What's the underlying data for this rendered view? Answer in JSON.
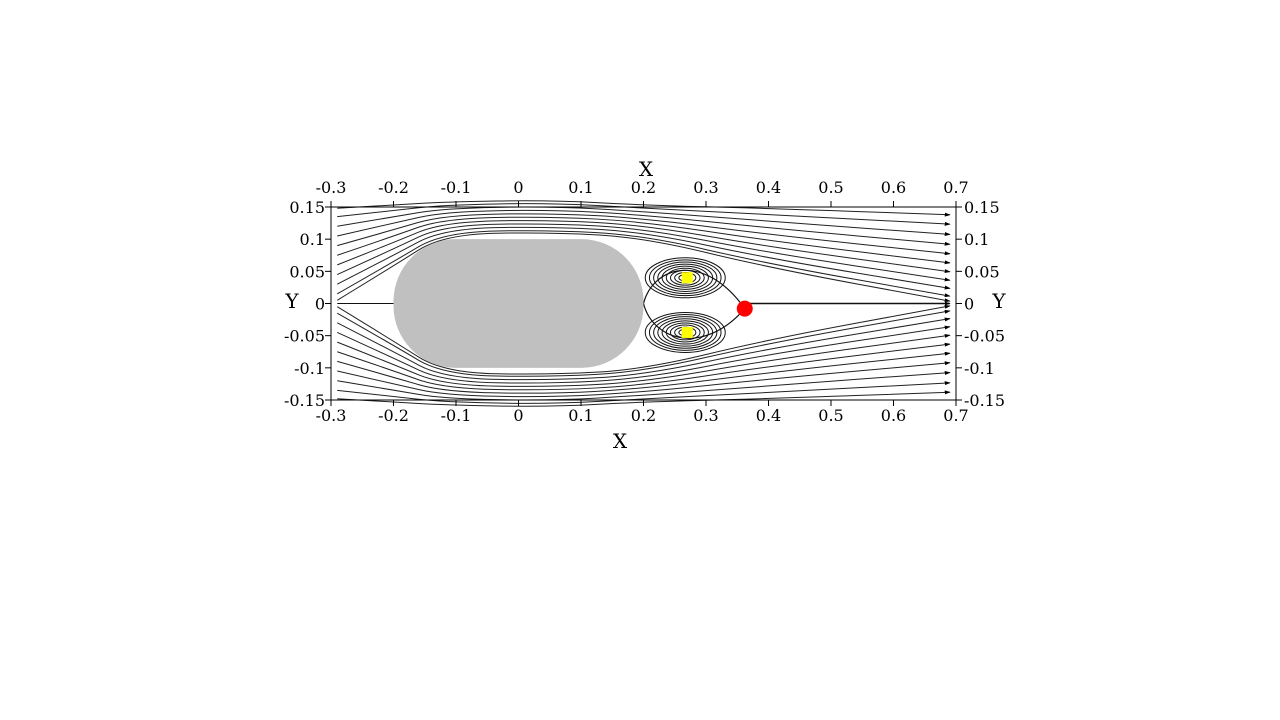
{
  "chart_data": {
    "type": "streamline",
    "xlabel": "X",
    "ylabel": "Y",
    "xlim": [
      -0.3,
      0.7
    ],
    "ylim": [
      -0.15,
      0.15
    ],
    "x_ticks": [
      "-0.3",
      "-0.2",
      "-0.1",
      "0",
      "0.1",
      "0.2",
      "0.3",
      "0.4",
      "0.5",
      "0.6",
      "0.7"
    ],
    "y_ticks": [
      "0.15",
      "0.1",
      "0.05",
      "0",
      "-0.05",
      "-0.1",
      "-0.15"
    ],
    "body": {
      "shape": "rounded-rectangle (stadium)",
      "x_range": [
        -0.2,
        0.2
      ],
      "y_range": [
        -0.1,
        0.1
      ],
      "color": "#c0c0c0"
    },
    "vortex_centers": [
      {
        "x": 0.27,
        "y": 0.04,
        "color": "#ffff00"
      },
      {
        "x": 0.27,
        "y": -0.045,
        "color": "#ffff00"
      }
    ],
    "saddle_point": {
      "x": 0.362,
      "y": -0.008,
      "color": "#ff0000"
    },
    "grid": false
  }
}
